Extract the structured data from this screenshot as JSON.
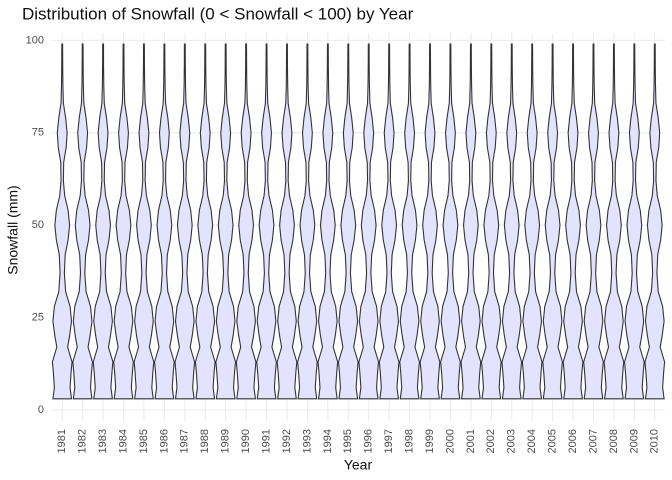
{
  "chart_data": {
    "type": "violin",
    "title": "Distribution of Snowfall (0 < Snowfall < 100) by Year",
    "xlabel": "Year",
    "ylabel": "Snowfall (mm)",
    "categories": [
      "1981",
      "1982",
      "1983",
      "1984",
      "1985",
      "1986",
      "1987",
      "1988",
      "1989",
      "1990",
      "1991",
      "1992",
      "1993",
      "1994",
      "1995",
      "1996",
      "1997",
      "1998",
      "1999",
      "2000",
      "2001",
      "2002",
      "2003",
      "2004",
      "2005",
      "2006",
      "2007",
      "2008",
      "2009",
      "2010"
    ],
    "density": {
      "y": [
        3,
        6,
        10,
        13,
        17,
        20,
        24,
        28,
        32,
        37,
        42,
        46,
        50,
        54,
        58,
        62,
        67,
        71,
        75,
        79,
        83,
        88,
        93,
        99
      ],
      "width": [
        0.95,
        0.8,
        0.9,
        1.0,
        0.55,
        0.75,
        0.95,
        0.8,
        0.35,
        0.22,
        0.3,
        0.6,
        0.75,
        0.6,
        0.25,
        0.12,
        0.15,
        0.4,
        0.5,
        0.35,
        0.12,
        0.07,
        0.05,
        0.04
      ]
    },
    "color": "#e3e3ff",
    "ylim": [
      -3,
      102
    ],
    "yticks": [
      0,
      25,
      50,
      75,
      100
    ],
    "grid": true
  }
}
